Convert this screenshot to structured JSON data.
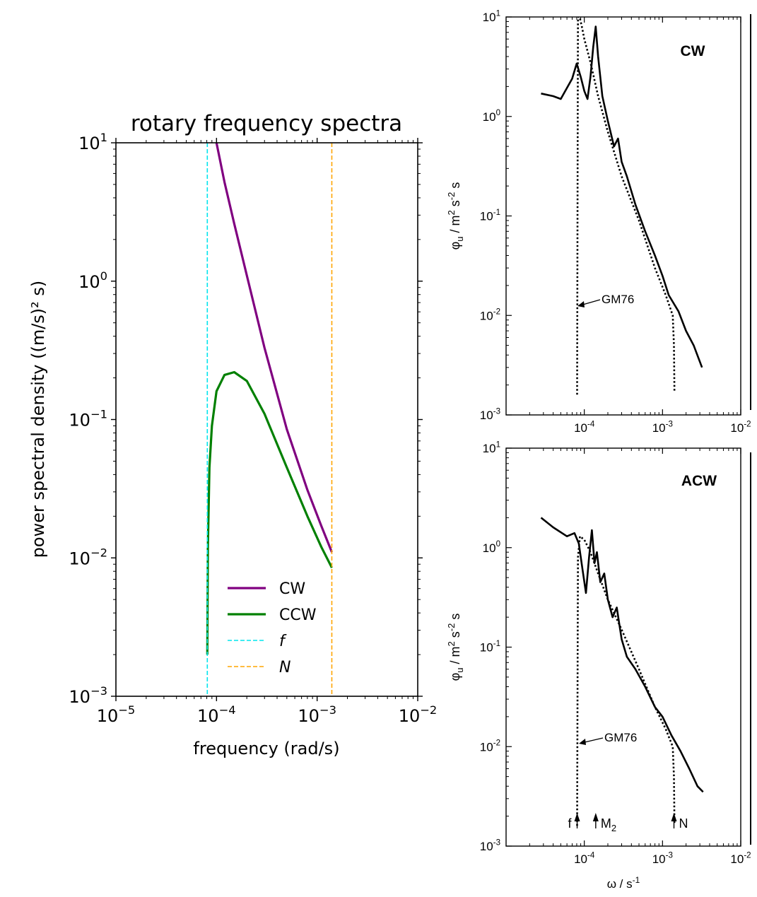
{
  "chart_data": [
    {
      "type": "line",
      "title": "rotary frequency spectra",
      "xlabel": "frequency (rad/s)",
      "ylabel": "power spectral density ((m/s)² s)",
      "xscale": "log",
      "yscale": "log",
      "xlim": [
        1e-05,
        0.01
      ],
      "ylim": [
        0.001,
        10
      ],
      "xticks": [
        {
          "value": 1e-05,
          "base": "10",
          "exp": "−5"
        },
        {
          "value": 0.0001,
          "base": "10",
          "exp": "−4"
        },
        {
          "value": 0.001,
          "base": "10",
          "exp": "−3"
        },
        {
          "value": 0.01,
          "base": "10",
          "exp": "−2"
        }
      ],
      "yticks": [
        {
          "value": 0.001,
          "base": "10",
          "exp": "−3"
        },
        {
          "value": 0.01,
          "base": "10",
          "exp": "−2"
        },
        {
          "value": 0.1,
          "base": "10",
          "exp": "−1"
        },
        {
          "value": 1,
          "base": "10",
          "exp": "0"
        },
        {
          "value": 10,
          "base": "10",
          "exp": "1"
        }
      ],
      "series": [
        {
          "name": "CW",
          "color": "#800080",
          "style": "solid",
          "x": [
            0.0001,
            0.00012,
            0.00015,
            0.0002,
            0.0003,
            0.0005,
            0.0008,
            0.0011,
            0.0014
          ],
          "y": [
            10.0,
            5.2,
            2.6,
            1.1,
            0.33,
            0.085,
            0.031,
            0.017,
            0.011
          ]
        },
        {
          "name": "CCW",
          "color": "#008000",
          "style": "solid",
          "x": [
            8.1e-05,
            8.2e-05,
            8.5e-05,
            9e-05,
            0.0001,
            0.00012,
            0.00015,
            0.0002,
            0.0003,
            0.0005,
            0.0008,
            0.0011,
            0.0014
          ],
          "y": [
            0.002,
            0.012,
            0.045,
            0.09,
            0.16,
            0.21,
            0.22,
            0.19,
            0.11,
            0.045,
            0.02,
            0.012,
            0.0085
          ]
        },
        {
          "name": "f",
          "color": "#00e5ee",
          "style": "dashed",
          "vline": 8.1e-05
        },
        {
          "name": "N",
          "color": "#ffa500",
          "style": "dashed",
          "vline": 0.0014
        }
      ],
      "legend": {
        "position": "lower-center",
        "entries": [
          "CW",
          "CCW",
          "f",
          "N"
        ]
      }
    },
    {
      "type": "line",
      "label": "CW",
      "ylabel": "φu / m² s⁻² s",
      "xscale": "log",
      "yscale": "log",
      "xlim": [
        1e-05,
        0.01
      ],
      "ylim": [
        0.001,
        10
      ],
      "series": [
        {
          "style": "solid",
          "x": [
            2.8e-05,
            4e-05,
            5e-05,
            7e-05,
            8e-05,
            9e-05,
            0.0001,
            0.00011,
            0.00012,
            0.00013,
            0.00014,
            0.00015,
            0.00017,
            0.0002,
            0.00024,
            0.00027,
            0.0003,
            0.00035,
            0.00045,
            0.0006,
            0.0008,
            0.001,
            0.0012,
            0.0016,
            0.002,
            0.0025,
            0.0032
          ],
          "y": [
            1.7,
            1.6,
            1.5,
            2.4,
            3.4,
            2.5,
            1.8,
            1.5,
            2.5,
            5.0,
            8.0,
            4.0,
            1.6,
            0.9,
            0.5,
            0.6,
            0.35,
            0.25,
            0.13,
            0.07,
            0.04,
            0.025,
            0.016,
            0.011,
            0.007,
            0.005,
            0.003
          ]
        },
        {
          "style": "dotted",
          "x": [
            8.1e-05,
            8.3e-05,
            8.7e-05,
            9.3e-05,
            0.0001,
            0.00012,
            0.00015,
            0.0002,
            0.0003,
            0.0005,
            0.0008,
            0.0011,
            0.00135,
            0.0014,
            0.00142
          ],
          "y": [
            0.0016,
            10.0,
            10.0,
            8.0,
            6.0,
            3.5,
            1.6,
            0.7,
            0.25,
            0.09,
            0.03,
            0.016,
            0.01,
            0.005,
            0.0017
          ]
        }
      ],
      "annotations": [
        {
          "text": "GM76"
        }
      ]
    },
    {
      "type": "line",
      "label": "ACW",
      "xlabel": "ω / s⁻¹",
      "ylabel": "φu / m² s⁻² s",
      "xscale": "log",
      "yscale": "log",
      "xlim": [
        1e-05,
        0.01
      ],
      "ylim": [
        0.001,
        10
      ],
      "series": [
        {
          "style": "solid",
          "x": [
            2.8e-05,
            4e-05,
            6e-05,
            7.5e-05,
            8.5e-05,
            9.5e-05,
            0.000105,
            0.000115,
            0.000125,
            0.000135,
            0.000145,
            0.00016,
            0.00018,
            0.0002,
            0.00023,
            0.00026,
            0.0003,
            0.00035,
            0.00045,
            0.0006,
            0.0008,
            0.001,
            0.0013,
            0.0017,
            0.0022,
            0.0028,
            0.0033
          ],
          "y": [
            2.0,
            1.6,
            1.3,
            1.4,
            1.1,
            0.6,
            0.35,
            0.8,
            1.5,
            0.7,
            0.9,
            0.45,
            0.55,
            0.3,
            0.2,
            0.25,
            0.12,
            0.08,
            0.06,
            0.04,
            0.025,
            0.02,
            0.013,
            0.009,
            0.006,
            0.004,
            0.0035
          ]
        },
        {
          "style": "dotted",
          "x": [
            8.1e-05,
            8.3e-05,
            8.8e-05,
            0.0001,
            0.00012,
            0.00015,
            0.0002,
            0.0003,
            0.0005,
            0.0008,
            0.0011,
            0.00135,
            0.0014,
            0.00142
          ],
          "y": [
            0.0016,
            0.8,
            1.3,
            1.2,
            0.9,
            0.55,
            0.3,
            0.15,
            0.06,
            0.025,
            0.015,
            0.01,
            0.005,
            0.0017
          ]
        }
      ],
      "annotations": [
        {
          "text": "GM76"
        },
        {
          "text": "f",
          "x": 8.1e-05
        },
        {
          "text": "M",
          "sub": "2",
          "x": 0.00014
        },
        {
          "text": "N",
          "x": 0.0014
        }
      ]
    }
  ],
  "right_panels": {
    "y_tick_base": "10",
    "y_tick_exps": [
      "-3",
      "-2",
      "-1",
      "0",
      "1"
    ],
    "x_tick_base": "10",
    "x_tick_exps": [
      "-4",
      "-3",
      "-2"
    ],
    "ylabel_main": "φ",
    "ylabel_sub": "u",
    "ylabel_rest": " / m",
    "ylabel_units": [
      "2",
      "s",
      "-2",
      "s"
    ],
    "xlabel_main": "ω / s",
    "xlabel_exp": "-1"
  }
}
